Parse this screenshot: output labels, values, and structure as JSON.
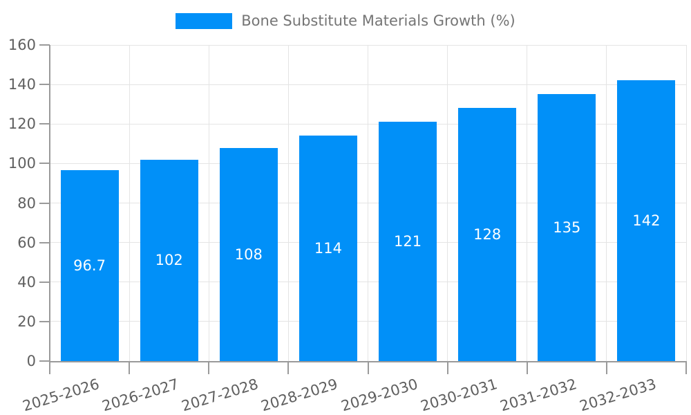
{
  "legend": {
    "label": "Bone Substitute Materials Growth (%)"
  },
  "chart_data": {
    "type": "bar",
    "title": "Bone Substitute Materials Growth (%)",
    "categories": [
      "2025-2026",
      "2026-2027",
      "2027-2028",
      "2028-2029",
      "2029-2030",
      "2030-2031",
      "2031-2032",
      "2032-2033"
    ],
    "values": [
      96.7,
      102,
      108,
      114,
      121,
      128,
      135,
      142
    ],
    "value_labels": [
      "96.7",
      "102",
      "108",
      "114",
      "121",
      "128",
      "135",
      "142"
    ],
    "xlabel": "",
    "ylabel": "",
    "ylim": [
      0,
      160
    ],
    "ytick_interval": 20,
    "yticks": [
      0,
      20,
      40,
      60,
      80,
      100,
      120,
      140,
      160
    ],
    "grid": true,
    "legend_position": "top",
    "bar_color": "#0190f8",
    "bar_label_color": "#ffffff",
    "axis_color": "#9a9a9a",
    "grid_color": "#e4e4e4",
    "tick_text_color": "#5f5f5f",
    "legend_text_color": "#757575",
    "background_color": "#ffffff"
  }
}
